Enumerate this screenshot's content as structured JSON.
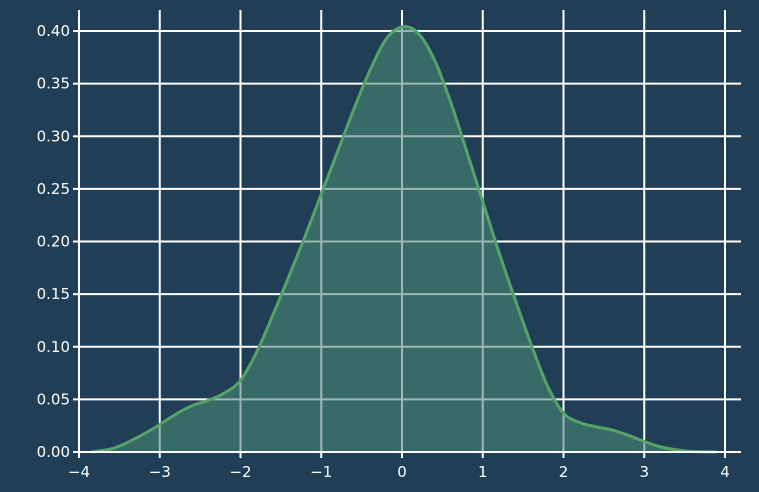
{
  "chart_data": {
    "type": "area",
    "title": "",
    "xlabel": "",
    "ylabel": "",
    "xlim": [
      -4,
      4
    ],
    "ylim": [
      0,
      0.42
    ],
    "grid": true,
    "legend": "none",
    "x_ticks": [
      -4,
      -3,
      -2,
      -1,
      0,
      1,
      2,
      3,
      4
    ],
    "x_tick_labels": [
      "−4",
      "−3",
      "−2",
      "−1",
      "0",
      "1",
      "2",
      "3",
      "4"
    ],
    "y_ticks": [
      0.0,
      0.05,
      0.1,
      0.15,
      0.2,
      0.25,
      0.3,
      0.35,
      0.4
    ],
    "y_tick_labels": [
      "0.00",
      "0.05",
      "0.10",
      "0.15",
      "0.20",
      "0.25",
      "0.30",
      "0.35",
      "0.40"
    ],
    "series": [
      {
        "x": [
          -3.85,
          -3.6,
          -3.4,
          -3.2,
          -3.0,
          -2.8,
          -2.6,
          -2.4,
          -2.2,
          -2.0,
          -1.8,
          -1.6,
          -1.4,
          -1.2,
          -1.0,
          -0.8,
          -0.6,
          -0.4,
          -0.2,
          0.0,
          0.2,
          0.4,
          0.6,
          0.8,
          1.0,
          1.2,
          1.4,
          1.6,
          1.8,
          2.0,
          2.2,
          2.4,
          2.6,
          2.8,
          3.0,
          3.2,
          3.4,
          3.6,
          3.9
        ],
        "y": [
          0.0,
          0.003,
          0.009,
          0.017,
          0.026,
          0.036,
          0.044,
          0.049,
          0.056,
          0.068,
          0.095,
          0.13,
          0.167,
          0.205,
          0.245,
          0.285,
          0.325,
          0.362,
          0.392,
          0.404,
          0.398,
          0.373,
          0.333,
          0.286,
          0.238,
          0.19,
          0.145,
          0.102,
          0.063,
          0.037,
          0.028,
          0.024,
          0.021,
          0.016,
          0.01,
          0.005,
          0.002,
          0.0005,
          0.0
        ]
      }
    ],
    "colors": {
      "background": "#203f56",
      "line": "#56a36a",
      "fill": "#3b6f6a",
      "grid": "#ffffff",
      "text": "#ffffff"
    }
  }
}
